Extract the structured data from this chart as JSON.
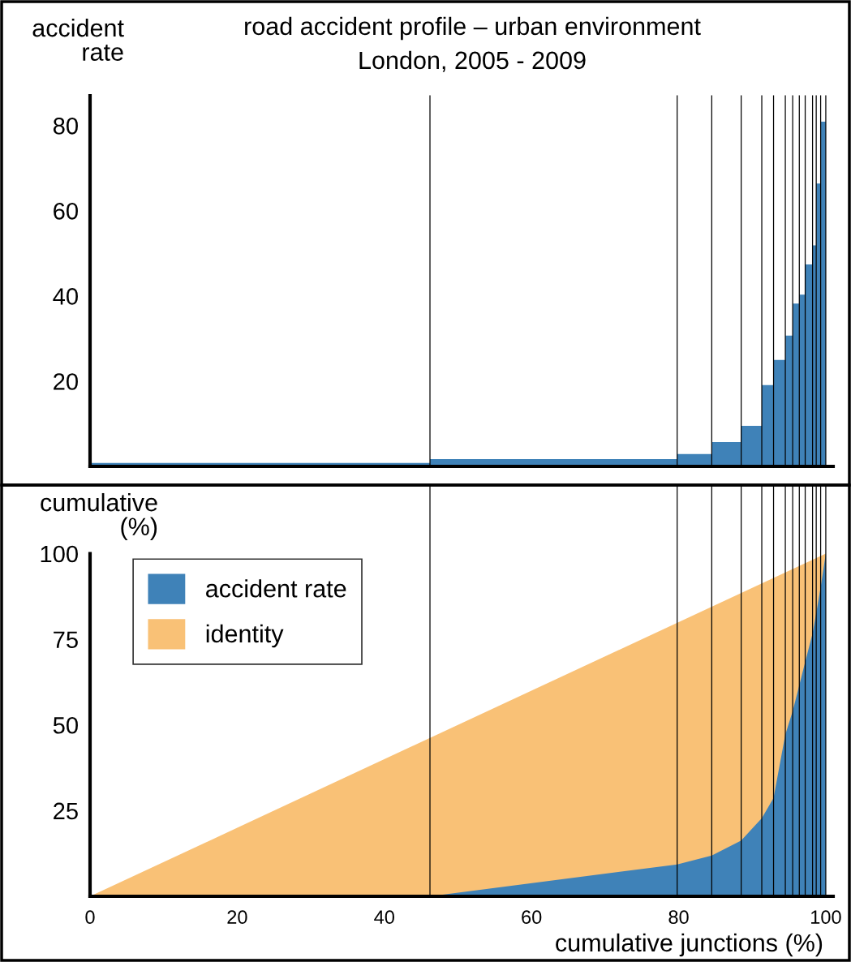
{
  "chart_data": [
    {
      "type": "histogram",
      "title": "road accident profile – urban environment",
      "subtitle": "London, 2005 - 2009",
      "ylabel": "accident\nrate",
      "bins": [
        0,
        46.2,
        79.8,
        84.5,
        88.5,
        91.3,
        92.9,
        94.5,
        95.5,
        96.4,
        97.2,
        98.2,
        98.7,
        99.3,
        100
      ],
      "values": [
        0.8,
        1.7,
        2.9,
        5.7,
        9.5,
        19.1,
        25.0,
        30.7,
        38.2,
        40.3,
        47.4,
        51.9,
        66.4,
        80.9
      ],
      "color": "#3f82b8",
      "xlim": [
        0,
        101
      ],
      "ylim": [
        0,
        87
      ],
      "yticks": [
        20,
        40,
        60,
        80
      ],
      "tick_labels": "y",
      "grid": false,
      "legend": false,
      "ref_lines": [
        {
          "axis": "x",
          "value": 46.2,
          "color": "#000000"
        },
        {
          "axis": "x",
          "value": 79.8,
          "color": "#000000"
        },
        {
          "axis": "x",
          "value": 84.5,
          "color": "#000000"
        },
        {
          "axis": "x",
          "value": 88.5,
          "color": "#000000"
        },
        {
          "axis": "x",
          "value": 91.3,
          "color": "#000000"
        },
        {
          "axis": "x",
          "value": 92.9,
          "color": "#000000"
        },
        {
          "axis": "x",
          "value": 94.5,
          "color": "#000000"
        },
        {
          "axis": "x",
          "value": 95.5,
          "color": "#000000"
        },
        {
          "axis": "x",
          "value": 96.4,
          "color": "#000000"
        },
        {
          "axis": "x",
          "value": 97.2,
          "color": "#000000"
        },
        {
          "axis": "x",
          "value": 98.2,
          "color": "#000000"
        },
        {
          "axis": "x",
          "value": 98.7,
          "color": "#000000"
        },
        {
          "axis": "x",
          "value": 99.3,
          "color": "#000000"
        },
        {
          "axis": "x",
          "value": 100,
          "color": "#000000"
        }
      ]
    },
    {
      "type": "area",
      "ylabel": "cumulative\n(%)",
      "xlabel": "cumulative junctions (%)",
      "series": [
        {
          "name": "accident rate",
          "color": "#3f82b8",
          "x": [
            46.2,
            79.8,
            84.5,
            88.5,
            91.3,
            92.9,
            94.5,
            95.5,
            96.4,
            97.2,
            98.2,
            98.7,
            99.3,
            100
          ],
          "values": [
            0,
            9.3,
            11.9,
            16.3,
            22.8,
            28.7,
            47.2,
            54,
            61.6,
            68.4,
            76.7,
            82.6,
            90.2,
            100
          ]
        },
        {
          "name": "identity",
          "color": "#f9c176",
          "x": [
            0,
            100
          ],
          "values": [
            0,
            100
          ]
        }
      ],
      "xlim": [
        0,
        101
      ],
      "xticks": [
        0,
        20,
        40,
        60,
        80,
        100
      ],
      "ylim": [
        0,
        120
      ],
      "yticks": [
        25,
        50,
        75,
        100
      ],
      "grid": false,
      "legend": "top left",
      "ref_lines": [
        {
          "axis": "x",
          "value": 46.2,
          "color": "#000000"
        },
        {
          "axis": "x",
          "value": 79.8,
          "color": "#000000"
        },
        {
          "axis": "x",
          "value": 84.5,
          "color": "#000000"
        },
        {
          "axis": "x",
          "value": 88.5,
          "color": "#000000"
        },
        {
          "axis": "x",
          "value": 91.3,
          "color": "#000000"
        },
        {
          "axis": "x",
          "value": 92.9,
          "color": "#000000"
        },
        {
          "axis": "x",
          "value": 94.5,
          "color": "#000000"
        },
        {
          "axis": "x",
          "value": 95.5,
          "color": "#000000"
        },
        {
          "axis": "x",
          "value": 96.4,
          "color": "#000000"
        },
        {
          "axis": "x",
          "value": 97.2,
          "color": "#000000"
        },
        {
          "axis": "x",
          "value": 98.2,
          "color": "#000000"
        },
        {
          "axis": "x",
          "value": 98.7,
          "color": "#000000"
        },
        {
          "axis": "x",
          "value": 99.3,
          "color": "#000000"
        },
        {
          "axis": "x",
          "value": 100,
          "color": "#000000"
        }
      ]
    }
  ]
}
